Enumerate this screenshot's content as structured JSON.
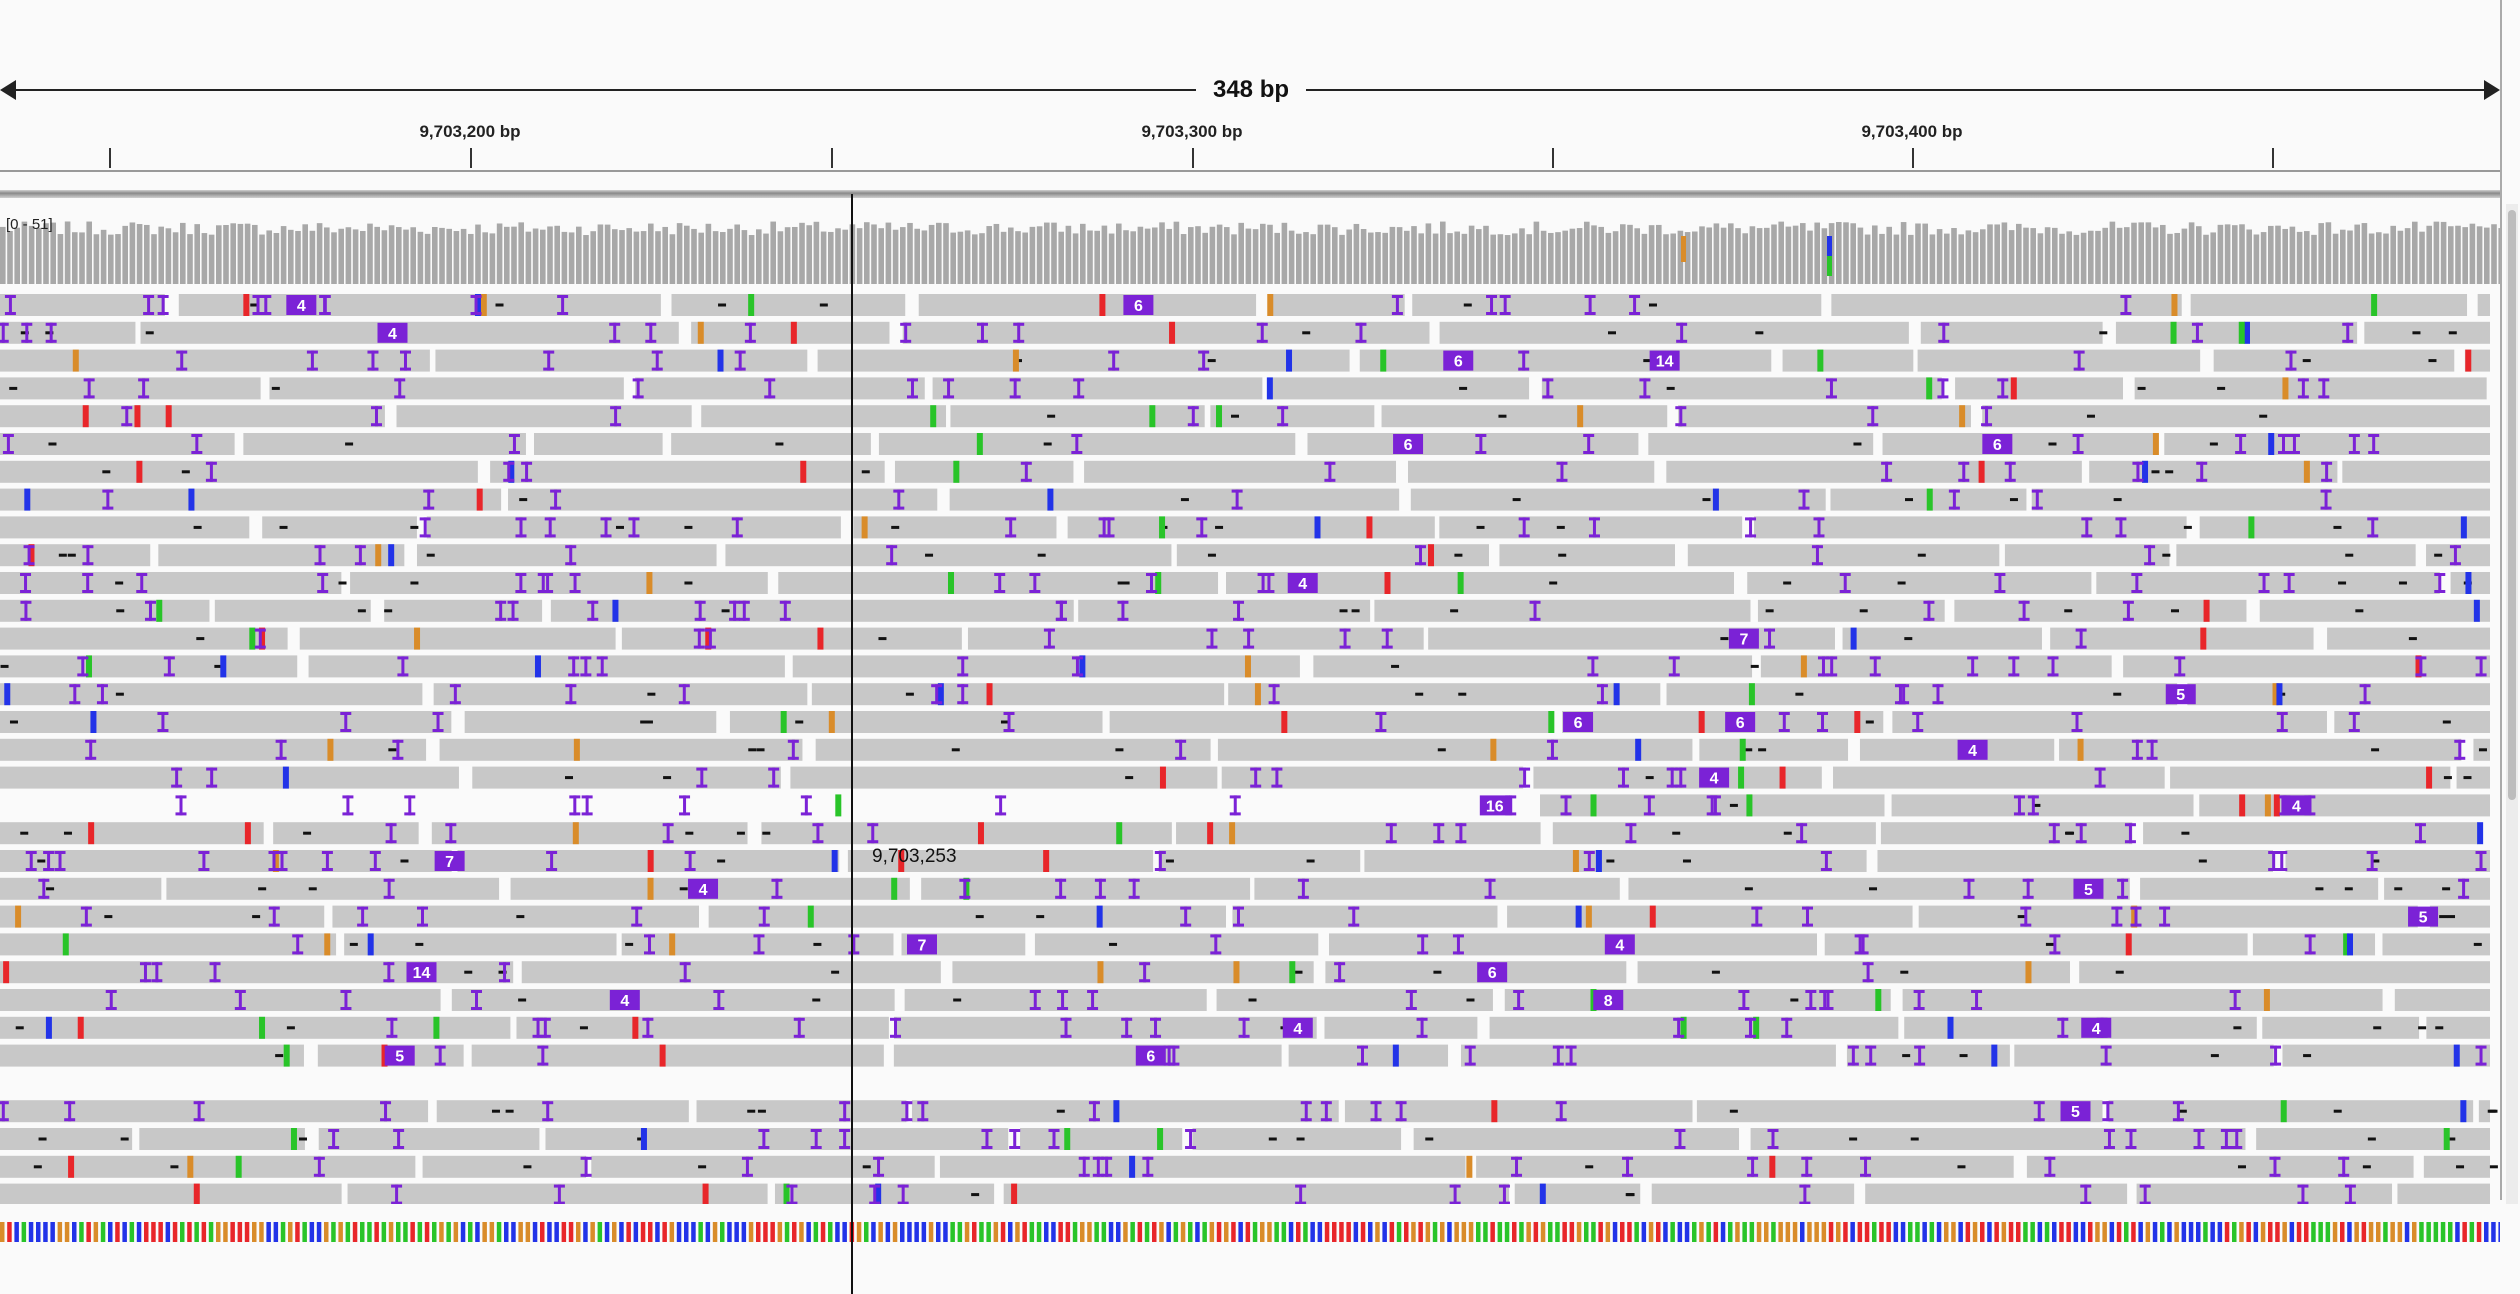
{
  "ruler": {
    "span_label": "348 bp",
    "tick_labels": [
      "9,703,200 bp",
      "9,703,300 bp",
      "9,703,400 bp"
    ]
  },
  "coverage": {
    "range_label": "[0 - 51]"
  },
  "center_position_label": "9,703,253",
  "colors": {
    "read": "#c8c8c8",
    "insertion": "#7b22d6",
    "mismatch_A": "#29c429",
    "mismatch_C": "#2233e8",
    "mismatch_G": "#d98c2a",
    "mismatch_T": "#e8262a",
    "coverage": "#a8a8a8",
    "background": "#fafafa"
  },
  "insertion_counts": [
    "4",
    "6",
    "4",
    "6",
    "14",
    "6",
    "6",
    "4",
    "7",
    "5",
    "6",
    "6",
    "4",
    "4",
    "4",
    "16",
    "7",
    "5",
    "4",
    "5",
    "4",
    "7",
    "14",
    "6",
    "4",
    "8",
    "4",
    "4",
    "5",
    "6",
    "5"
  ],
  "icons": [
    "range-arrow-left-icon",
    "range-arrow-right-icon"
  ]
}
